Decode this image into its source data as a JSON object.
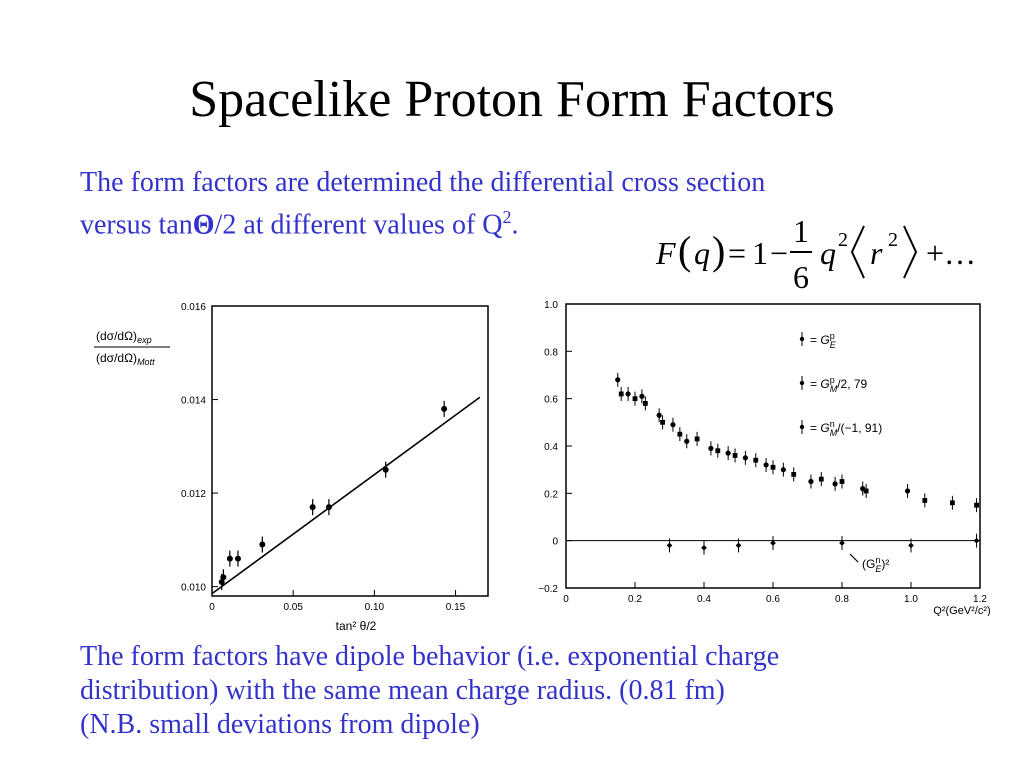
{
  "slide": {
    "title": "Spacelike Proton Form Factors",
    "text_color": "#3333cc",
    "para1_line1": "The form factors are determined the differential cross section",
    "para1_line2_a": "versus tan",
    "para1_theta": "Θ",
    "para1_line2_b": "/2 at different values of Q",
    "para1_sup": "2",
    "para1_end": ".",
    "para2_line1": "The form factors have dipole behavior (i.e. exponential charge",
    "para2_line2": "distribution) with the same mean charge radius.  (0.81 fm)",
    "para2_line3": "(N.B. small deviations from dipole)"
  },
  "formula": {
    "lhs_F": "F",
    "lhs_q": "q",
    "one": "1",
    "minus": "−",
    "frac_num": "1",
    "frac_den": "6",
    "q": "q",
    "sq1": "2",
    "r": "r",
    "sq2": "2",
    "tail": "+…"
  },
  "chart_data": [
    {
      "type": "scatter",
      "ylabel_num": "(dσ/dΩ)",
      "ylabel_num_sub": "exp",
      "ylabel_den": "(dσ/dΩ)",
      "ylabel_den_sub": "Mott",
      "xlabel": "tan² θ/2",
      "xlim": [
        0,
        0.17
      ],
      "ylim": [
        0.0098,
        0.016
      ],
      "xticks": [
        "0",
        "0.05",
        "0.10",
        "0.15"
      ],
      "xtick_values": [
        0,
        0.05,
        0.1,
        0.15
      ],
      "yticks": [
        "0.010",
        "0.012",
        "0.014",
        "0.016"
      ],
      "ytick_values": [
        0.01,
        0.012,
        0.014,
        0.016
      ],
      "points": [
        {
          "x": 0.006,
          "y": 0.0101
        },
        {
          "x": 0.007,
          "y": 0.0102
        },
        {
          "x": 0.011,
          "y": 0.0106
        },
        {
          "x": 0.016,
          "y": 0.0106
        },
        {
          "x": 0.031,
          "y": 0.0109
        },
        {
          "x": 0.062,
          "y": 0.0117
        },
        {
          "x": 0.072,
          "y": 0.0117
        },
        {
          "x": 0.107,
          "y": 0.0125
        },
        {
          "x": 0.143,
          "y": 0.0138
        }
      ],
      "fit_line": {
        "x": [
          0,
          0.165
        ],
        "y": [
          0.00985,
          0.01405
        ]
      }
    },
    {
      "type": "scatter",
      "xlabel": "Q²(GeV²/c²)",
      "xlim": [
        0,
        1.2
      ],
      "ylim": [
        -0.2,
        1.0
      ],
      "xticks": [
        "0",
        "0.2",
        "0.4",
        "0.6",
        "0.8",
        "1.0",
        "1.2"
      ],
      "xtick_values": [
        0,
        0.2,
        0.4,
        0.6,
        0.8,
        1.0,
        1.2
      ],
      "yticks": [
        "1.0",
        "0.8",
        "0.6",
        "0.4",
        "0.2",
        "0",
        "−0.2"
      ],
      "ytick_values": [
        1.0,
        0.8,
        0.6,
        0.4,
        0.2,
        0,
        -0.2
      ],
      "zero_line": true,
      "annotation": "(G",
      "annotation_sub": "E",
      "annotation_sup": "n",
      "annotation_end": ")²",
      "legend": [
        {
          "name": "G",
          "sup": "p",
          "sub": "E",
          "suffix": ""
        },
        {
          "name": "G",
          "sup": "p",
          "sub": "M",
          "suffix": "/2, 79"
        },
        {
          "name": "G",
          "sup": "n",
          "sub": "M",
          "suffix": "/(−1, 91)"
        }
      ],
      "series": [
        {
          "name": "G_E^p",
          "points": [
            {
              "x": 0.15,
              "y": 0.68
            },
            {
              "x": 0.18,
              "y": 0.62
            },
            {
              "x": 0.22,
              "y": 0.61
            },
            {
              "x": 0.27,
              "y": 0.53
            },
            {
              "x": 0.31,
              "y": 0.49
            },
            {
              "x": 0.35,
              "y": 0.42
            },
            {
              "x": 0.42,
              "y": 0.39
            },
            {
              "x": 0.47,
              "y": 0.37
            },
            {
              "x": 0.52,
              "y": 0.35
            },
            {
              "x": 0.58,
              "y": 0.32
            },
            {
              "x": 0.63,
              "y": 0.3
            },
            {
              "x": 0.71,
              "y": 0.25
            },
            {
              "x": 0.78,
              "y": 0.24
            },
            {
              "x": 0.86,
              "y": 0.22
            },
            {
              "x": 0.99,
              "y": 0.21
            }
          ]
        },
        {
          "name": "G_M^p/2,79",
          "points": [
            {
              "x": 0.16,
              "y": 0.62
            },
            {
              "x": 0.2,
              "y": 0.6
            },
            {
              "x": 0.23,
              "y": 0.58
            },
            {
              "x": 0.28,
              "y": 0.5
            },
            {
              "x": 0.33,
              "y": 0.45
            },
            {
              "x": 0.38,
              "y": 0.43
            },
            {
              "x": 0.44,
              "y": 0.38
            },
            {
              "x": 0.49,
              "y": 0.36
            },
            {
              "x": 0.55,
              "y": 0.34
            },
            {
              "x": 0.6,
              "y": 0.31
            },
            {
              "x": 0.66,
              "y": 0.28
            },
            {
              "x": 0.74,
              "y": 0.26
            },
            {
              "x": 0.8,
              "y": 0.25
            },
            {
              "x": 0.87,
              "y": 0.21
            },
            {
              "x": 1.04,
              "y": 0.17
            },
            {
              "x": 1.12,
              "y": 0.16
            },
            {
              "x": 1.19,
              "y": 0.15
            }
          ]
        },
        {
          "name": "G_M^n/(-1,91)",
          "points": [
            {
              "x": 0.3,
              "y": -0.02
            },
            {
              "x": 0.4,
              "y": -0.03
            },
            {
              "x": 0.5,
              "y": -0.02
            },
            {
              "x": 0.6,
              "y": -0.01
            },
            {
              "x": 0.8,
              "y": -0.01
            },
            {
              "x": 1.0,
              "y": -0.02
            },
            {
              "x": 1.19,
              "y": 0.0
            }
          ]
        }
      ]
    }
  ]
}
